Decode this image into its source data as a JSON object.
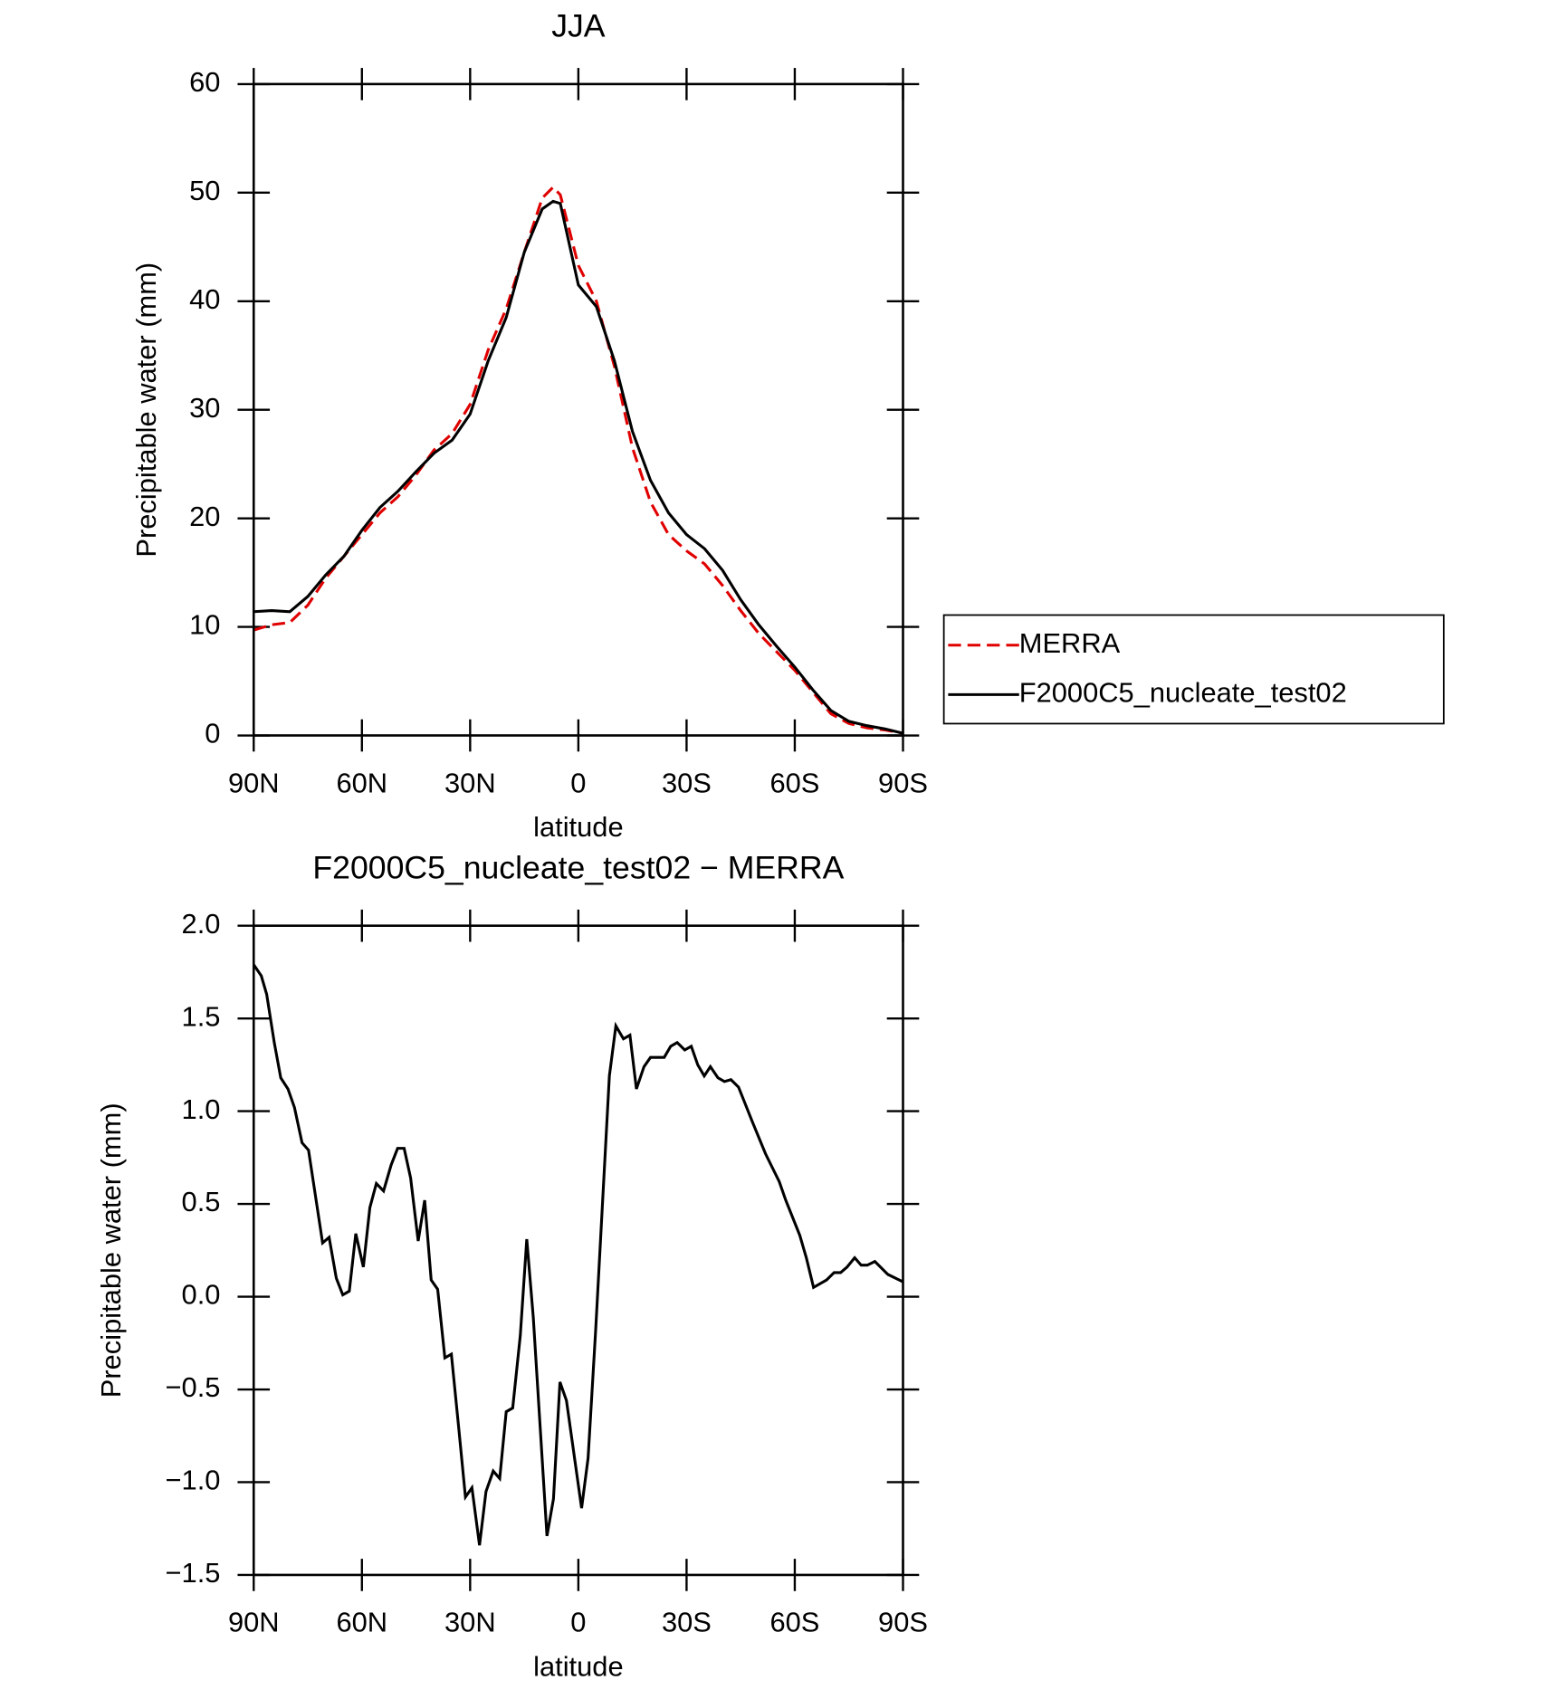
{
  "chart_data": [
    {
      "type": "line",
      "title": "JJA",
      "x_label": "latitude",
      "y_label": "Precipitable water (mm)",
      "x": [
        90,
        85,
        80,
        75,
        70,
        65,
        60,
        55,
        50,
        45,
        40,
        35,
        30,
        25,
        20,
        15,
        10,
        7,
        5,
        0,
        -5,
        -10,
        -15,
        -20,
        -25,
        -30,
        -35,
        -40,
        -45,
        -50,
        -55,
        -60,
        -65,
        -70,
        -75,
        -80,
        -85,
        -90
      ],
      "series": [
        {
          "name": "MERRA",
          "color": "#e00000",
          "line_style": "dashed",
          "values": [
            9.7,
            10.2,
            10.4,
            12.0,
            14.5,
            16.5,
            18.5,
            20.5,
            22.0,
            24.0,
            26.3,
            27.8,
            30.5,
            35.5,
            39.3,
            44.5,
            49.5,
            50.5,
            49.8,
            43.3,
            40.0,
            34.0,
            26.5,
            21.5,
            18.5,
            17.0,
            15.8,
            13.8,
            11.5,
            9.4,
            7.7,
            6.0,
            4.0,
            2.0,
            1.1,
            0.7,
            0.5,
            0.2
          ]
        },
        {
          "name": "F2000C5_nucleate_test02",
          "color": "#000000",
          "line_style": "solid",
          "values": [
            11.4,
            11.5,
            11.4,
            12.8,
            14.8,
            16.5,
            18.9,
            21.0,
            22.5,
            24.3,
            26.0,
            27.2,
            29.6,
            34.5,
            38.5,
            44.5,
            48.5,
            49.2,
            49.0,
            41.5,
            39.5,
            34.5,
            28.0,
            23.5,
            20.5,
            18.5,
            17.2,
            15.2,
            12.5,
            10.2,
            8.2,
            6.3,
            4.2,
            2.3,
            1.3,
            0.9,
            0.6,
            0.2
          ]
        }
      ],
      "xlim": [
        90,
        -90
      ],
      "xticks": [
        {
          "value": 90,
          "label": "90N"
        },
        {
          "value": 60,
          "label": "60N"
        },
        {
          "value": 30,
          "label": "30N"
        },
        0,
        {
          "value": -30,
          "label": "30S"
        },
        {
          "value": -60,
          "label": "60S"
        },
        {
          "value": -90,
          "label": "90S"
        }
      ],
      "ylim": [
        0,
        60
      ],
      "yticks": [
        0,
        10,
        20,
        30,
        40,
        50,
        60
      ],
      "legend": "right"
    },
    {
      "type": "line",
      "title": "F2000C5_nucleate_test02 − MERRA",
      "x_label": "latitude",
      "y_label": "Precipitable water (mm)",
      "x": [
        90,
        87.9,
        86.4,
        84.3,
        82.5,
        80.5,
        78.7,
        76.6,
        74.8,
        70.9,
        69.1,
        67.1,
        65.3,
        63.5,
        61.7,
        59.6,
        57.8,
        56.0,
        54.0,
        51.9,
        50.1,
        48.3,
        46.5,
        44.4,
        42.6,
        40.8,
        39.0,
        37.0,
        35.2,
        33.1,
        31.3,
        29.5,
        27.4,
        25.6,
        23.6,
        21.8,
        20.0,
        18.2,
        16.1,
        14.3,
        12.5,
        10.4,
        8.7,
        6.9,
        5.1,
        3.3,
        -0.9,
        -2.7,
        -4.8,
        -8.6,
        -10.4,
        -12.5,
        -14.3,
        -16.1,
        -18.2,
        -20.0,
        -21.8,
        -23.8,
        -25.6,
        -27.4,
        -29.5,
        -31.3,
        -33.1,
        -34.9,
        -36.6,
        -38.7,
        -40.5,
        -42.3,
        -44.4,
        -48.3,
        -51.9,
        -55.7,
        -57.5,
        -61.4,
        -63.2,
        -65.2,
        -68.8,
        -70.9,
        -72.7,
        -74.5,
        -76.6,
        -78.4,
        -80.1,
        -82.2,
        -85.8,
        -90
      ],
      "series": [
        {
          "name": "F2000C5_nucleate_test02 − MERRA",
          "color": "#000000",
          "line_style": "solid",
          "values": [
            1.79,
            1.73,
            1.63,
            1.37,
            1.18,
            1.12,
            1.02,
            0.83,
            0.79,
            0.29,
            0.32,
            0.1,
            0.01,
            0.03,
            0.34,
            0.16,
            0.48,
            0.61,
            0.57,
            0.71,
            0.8,
            0.8,
            0.64,
            0.3,
            0.52,
            0.09,
            0.04,
            -0.33,
            -0.31,
            -0.72,
            -1.08,
            -1.03,
            -1.34,
            -1.05,
            -0.94,
            -0.98,
            -0.62,
            -0.6,
            -0.21,
            0.31,
            -0.11,
            -0.76,
            -1.29,
            -1.09,
            -0.46,
            -0.56,
            -1.14,
            -0.87,
            -0.18,
            1.19,
            1.46,
            1.39,
            1.41,
            1.12,
            1.24,
            1.29,
            1.29,
            1.29,
            1.35,
            1.37,
            1.33,
            1.35,
            1.25,
            1.19,
            1.24,
            1.18,
            1.16,
            1.17,
            1.13,
            0.94,
            0.77,
            0.62,
            0.52,
            0.33,
            0.21,
            0.05,
            0.09,
            0.13,
            0.13,
            0.16,
            0.21,
            0.17,
            0.17,
            0.19,
            0.12,
            0.08
          ]
        }
      ],
      "xlim": [
        90,
        -90
      ],
      "xticks": [
        {
          "value": 90,
          "label": "90N"
        },
        {
          "value": 60,
          "label": "60N"
        },
        {
          "value": 30,
          "label": "30N"
        },
        0,
        {
          "value": -30,
          "label": "30S"
        },
        {
          "value": -60,
          "label": "60S"
        },
        {
          "value": -90,
          "label": "90S"
        }
      ],
      "ylim": [
        -1.5,
        2
      ],
      "yticks": [
        {
          "value": -1.5,
          "label": "−1.5"
        },
        {
          "value": -1,
          "label": "−1.0"
        },
        {
          "value": -0.5,
          "label": "−0.5"
        },
        {
          "value": 0,
          "label": "0.0"
        },
        0.5,
        {
          "value": 1,
          "label": "1.0"
        },
        1.5,
        {
          "value": 2,
          "label": "2.0"
        }
      ]
    }
  ]
}
